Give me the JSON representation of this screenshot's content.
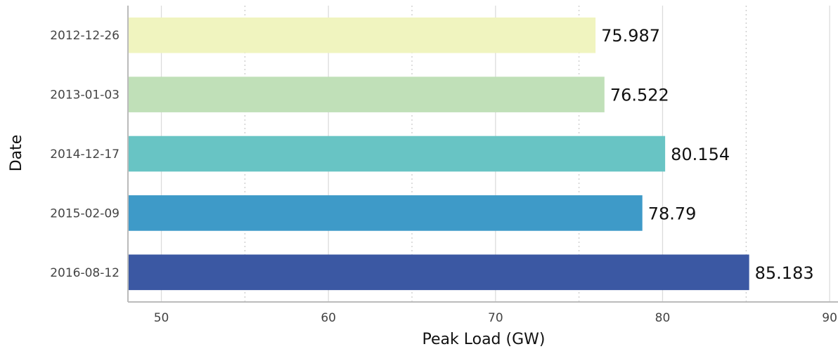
{
  "chart_data": {
    "type": "bar",
    "orientation": "horizontal",
    "categories": [
      "2012-12-26",
      "2013-01-03",
      "2014-12-17",
      "2015-02-09",
      "2016-08-12"
    ],
    "values": [
      75.987,
      76.522,
      80.154,
      78.79,
      85.183
    ],
    "value_labels": [
      "75.987",
      "76.522",
      "80.154",
      "78.79",
      "85.183"
    ],
    "colors": [
      "#f0f4bf",
      "#c0e0b8",
      "#68c4c4",
      "#3e9ac8",
      "#3b58a3"
    ],
    "xlabel": "Peak Load (GW)",
    "ylabel": "Date",
    "xlim": [
      48,
      90.5
    ],
    "x_ticks": [
      50,
      60,
      70,
      80,
      90
    ],
    "x_tick_labels": [
      "50",
      "60",
      "70",
      "80",
      "90"
    ],
    "minor_grid": [
      55,
      65,
      75,
      85
    ],
    "grid": true,
    "legend": "none"
  }
}
